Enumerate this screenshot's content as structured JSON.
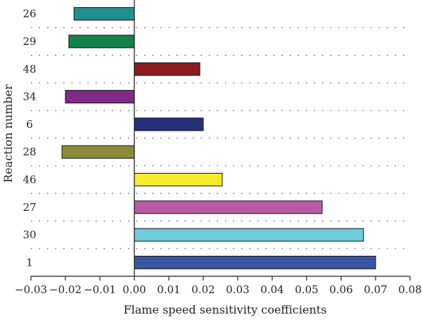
{
  "chart_data": {
    "type": "bar",
    "orientation": "horizontal",
    "xlabel": "Flame speed sensitivity coefficients",
    "ylabel": "Reaction number",
    "xlim": [
      -0.03,
      0.08
    ],
    "xticks": [
      -0.03,
      -0.02,
      -0.01,
      0.0,
      0.01,
      0.02,
      0.03,
      0.04,
      0.05,
      0.06,
      0.07,
      0.08
    ],
    "xtick_labels": [
      "−0.03",
      "−0.02",
      "−0.01",
      "0.00",
      "0.01",
      "0.02",
      "0.03",
      "0.04",
      "0.05",
      "0.06",
      "0.07",
      "0.08"
    ],
    "grid": "dotted horizontal",
    "categories": [
      "26",
      "29",
      "48",
      "34",
      "6",
      "28",
      "46",
      "27",
      "30",
      "1"
    ],
    "values": [
      -0.0175,
      -0.019,
      0.019,
      -0.02,
      0.02,
      -0.021,
      0.0255,
      0.0545,
      0.0665,
      0.07
    ],
    "colors": [
      "#1f8f8f",
      "#12824a",
      "#8b1a1f",
      "#7f2a86",
      "#26307a",
      "#8a8a38",
      "#f4ec2a",
      "#b95aa6",
      "#6dcbdd",
      "#3c56a6"
    ]
  }
}
